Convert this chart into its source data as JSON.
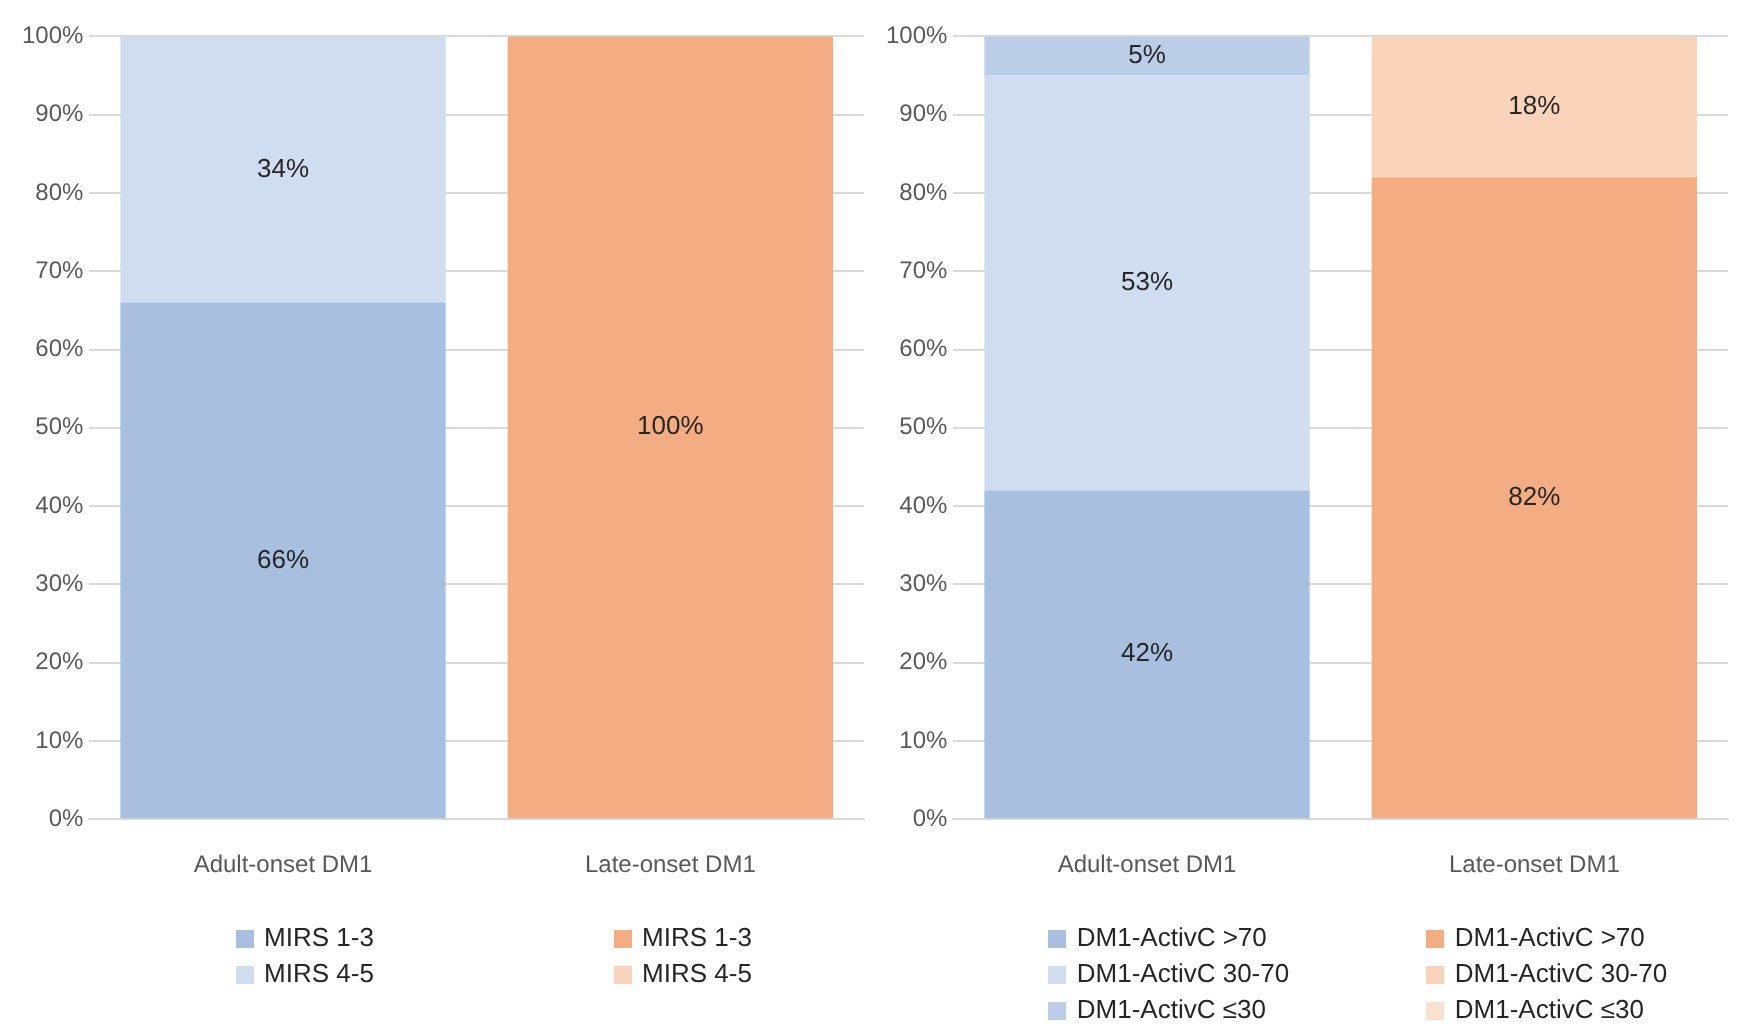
{
  "chart_data": [
    {
      "type": "bar",
      "stacked": true,
      "categories": [
        "Adult-onset DM1",
        "Late-onset DM1"
      ],
      "series": [
        {
          "name": "MIRS 1-3",
          "colors": [
            "#a9bfe0",
            "#f4ad82"
          ],
          "values": [
            66,
            100
          ],
          "value_labels": [
            "66%",
            "100%"
          ]
        },
        {
          "name": "MIRS 4-5",
          "colors": [
            "#d0dcef",
            "#f9d4bb"
          ],
          "values": [
            34,
            0
          ],
          "value_labels": [
            "34%",
            null
          ]
        }
      ],
      "ylim": [
        0,
        100
      ],
      "yticks": [
        {
          "value": 0,
          "label": "0%"
        },
        {
          "value": 10,
          "label": "10%"
        },
        {
          "value": 20,
          "label": "20%"
        },
        {
          "value": 30,
          "label": "30%"
        },
        {
          "value": 40,
          "label": "40%"
        },
        {
          "value": 50,
          "label": "50%"
        },
        {
          "value": 60,
          "label": "60%"
        },
        {
          "value": 70,
          "label": "70%"
        },
        {
          "value": 80,
          "label": "80%"
        },
        {
          "value": 90,
          "label": "90%"
        },
        {
          "value": 100,
          "label": "100%"
        }
      ],
      "grid": "y",
      "legend": "bottom"
    },
    {
      "type": "bar",
      "stacked": true,
      "categories": [
        "Adult-onset DM1",
        "Late-onset DM1"
      ],
      "series": [
        {
          "name": "DM1-ActivC >70",
          "colors": [
            "#a9bfe0",
            "#f4ad82"
          ],
          "values": [
            42,
            82
          ],
          "value_labels": [
            "42%",
            "82%"
          ]
        },
        {
          "name": "DM1-ActivC 30-70",
          "colors": [
            "#d0dcef",
            "#f9d4bb"
          ],
          "values": [
            53,
            18
          ],
          "value_labels": [
            "53%",
            "18%"
          ]
        },
        {
          "name": "DM1-ActivC ≤30",
          "colors": [
            "#bccde8",
            "#fbe2d0"
          ],
          "values": [
            5,
            0
          ],
          "value_labels": [
            "5%",
            null
          ]
        }
      ],
      "ylim": [
        0,
        100
      ],
      "yticks": [
        {
          "value": 0,
          "label": "0%"
        },
        {
          "value": 10,
          "label": "10%"
        },
        {
          "value": 20,
          "label": "20%"
        },
        {
          "value": 30,
          "label": "30%"
        },
        {
          "value": 40,
          "label": "40%"
        },
        {
          "value": 50,
          "label": "50%"
        },
        {
          "value": 60,
          "label": "60%"
        },
        {
          "value": 70,
          "label": "70%"
        },
        {
          "value": 80,
          "label": "80%"
        },
        {
          "value": 90,
          "label": "90%"
        },
        {
          "value": 100,
          "label": "100%"
        }
      ],
      "grid": "y",
      "legend": "bottom"
    }
  ]
}
